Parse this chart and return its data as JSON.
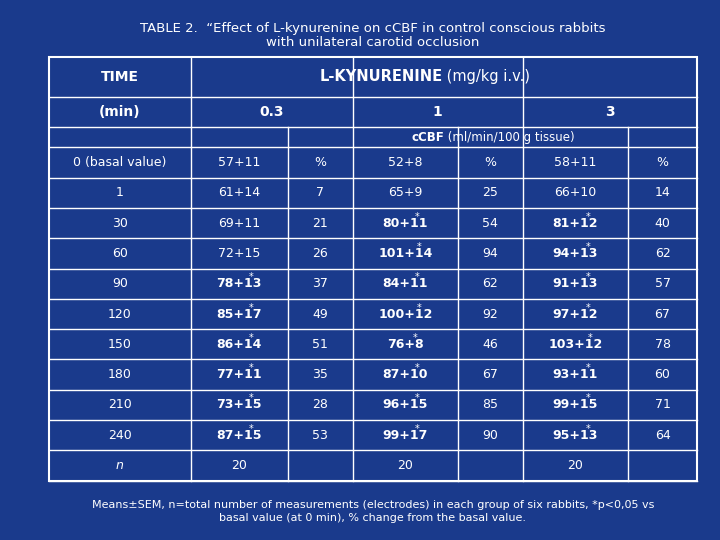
{
  "title_line1": "TABLE 2.  “Effect of L-kynurenine on cCBF in control conscious rabbits",
  "title_line2": "with unilateral carotid occlusion",
  "bg_color": "#1a3a8c",
  "text_color": "white",
  "border_color": "white",
  "footer_line1": "Means±SEM, n=total number of measurements (electrodes) in each group of six rabbits, *p<0,05 vs",
  "footer_line2": "basal value (at 0 min), % change from the basal value.",
  "rows": [
    [
      "0 (basal value)",
      "57+11",
      "%",
      "52+8",
      "%",
      "58+11",
      "%",
      false,
      false,
      false
    ],
    [
      "1",
      "61+14",
      "7",
      "65+9",
      "25",
      "66+10",
      "14",
      false,
      false,
      false
    ],
    [
      "30",
      "69+11",
      "21",
      "80+11",
      "54",
      "81+12",
      "40",
      false,
      true,
      true
    ],
    [
      "60",
      "72+15",
      "26",
      "101+14",
      "94",
      "94+13",
      "62",
      false,
      true,
      true
    ],
    [
      "90",
      "78+13",
      "37",
      "84+11",
      "62",
      "91+13",
      "57",
      true,
      true,
      true
    ],
    [
      "120",
      "85+17",
      "49",
      "100+12",
      "92",
      "97+12",
      "67",
      true,
      true,
      true
    ],
    [
      "150",
      "86+14",
      "51",
      "76+8",
      "46",
      "103+12",
      "78",
      true,
      true,
      true
    ],
    [
      "180",
      "77+11",
      "35",
      "87+10",
      "67",
      "93+11",
      "60",
      true,
      true,
      true
    ],
    [
      "210",
      "73+15",
      "28",
      "96+15",
      "85",
      "99+15",
      "71",
      true,
      true,
      true
    ],
    [
      "240",
      "87+15",
      "53",
      "99+17",
      "90",
      "95+13",
      "64",
      true,
      true,
      true
    ],
    [
      "n",
      "20",
      "",
      "20",
      "",
      "20",
      "",
      false,
      false,
      false
    ]
  ]
}
